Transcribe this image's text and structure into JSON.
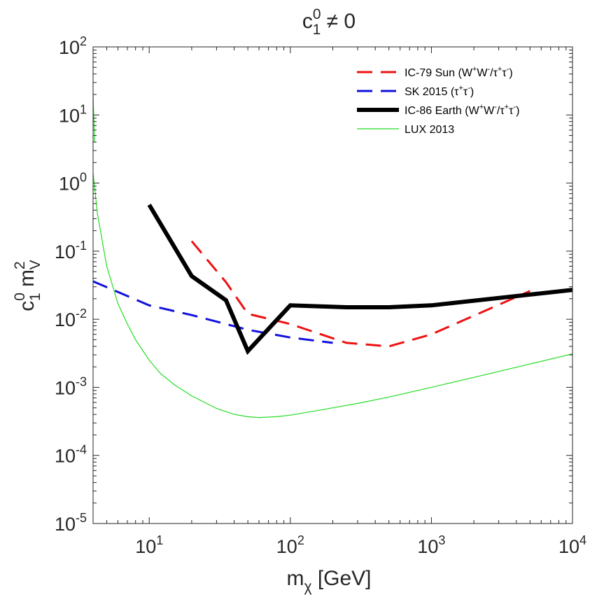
{
  "chart_data": {
    "type": "line",
    "title": "c₁⁰ ≠ 0",
    "title_parts": {
      "base": "c",
      "sup": "0",
      "sub": "1",
      "rest": " ≠ 0"
    },
    "xlabel": "m_χ [GeV]",
    "xlabel_parts": {
      "base": "m",
      "sub": "χ",
      "rest": " [GeV]"
    },
    "ylabel": "c₁⁰ m_V²",
    "ylabel_parts": {
      "c": "c",
      "c_sup": "0",
      "c_sub": "1",
      "m": " m",
      "m_sup": "2",
      "m_sub": "V"
    },
    "xscale": "log",
    "yscale": "log",
    "xlim": [
      4,
      10000
    ],
    "ylim": [
      1e-05,
      100
    ],
    "x_ticks": [
      {
        "value": 10,
        "base": "10",
        "exp": "1"
      },
      {
        "value": 100,
        "base": "10",
        "exp": "2"
      },
      {
        "value": 1000,
        "base": "10",
        "exp": "3"
      },
      {
        "value": 10000,
        "base": "10",
        "exp": "4"
      }
    ],
    "y_ticks": [
      {
        "value": 1e-05,
        "base": "10",
        "exp": "-5"
      },
      {
        "value": 0.0001,
        "base": "10",
        "exp": "-4"
      },
      {
        "value": 0.001,
        "base": "10",
        "exp": "-3"
      },
      {
        "value": 0.01,
        "base": "10",
        "exp": "-2"
      },
      {
        "value": 0.1,
        "base": "10",
        "exp": "-1"
      },
      {
        "value": 1,
        "base": "10",
        "exp": "0"
      },
      {
        "value": 10,
        "base": "10",
        "exp": "1"
      },
      {
        "value": 100,
        "base": "10",
        "exp": "2"
      }
    ],
    "grid": false,
    "legend_position": "top-right",
    "series": [
      {
        "name": "IC-79 Sun (W+W-/τ+τ-)",
        "legend_parts": [
          [
            "IC-79 Sun (W",
            ""
          ],
          [
            "+",
            "sup"
          ],
          [
            "W",
            ""
          ],
          [
            "-",
            "sup"
          ],
          [
            "/τ",
            ""
          ],
          [
            "+",
            "sup"
          ],
          [
            "τ",
            ""
          ],
          [
            "-",
            "sup"
          ],
          [
            ")",
            ""
          ]
        ],
        "color": "#ee1111",
        "style": "dashed",
        "width": 3,
        "x": [
          20,
          35,
          50,
          100,
          250,
          500,
          1000,
          5000
        ],
        "y": [
          0.14,
          0.035,
          0.012,
          0.0085,
          0.0045,
          0.004,
          0.006,
          0.026
        ]
      },
      {
        "name": "SK 2015 (τ+τ-)",
        "legend_parts": [
          [
            "SK 2015 (τ",
            ""
          ],
          [
            "+",
            "sup"
          ],
          [
            "τ",
            ""
          ],
          [
            "-",
            "sup"
          ],
          [
            ")",
            ""
          ]
        ],
        "color": "#1111dd",
        "style": "dashed",
        "width": 3,
        "x": [
          4,
          10,
          20,
          50,
          100,
          200
        ],
        "y": [
          0.036,
          0.016,
          0.0115,
          0.007,
          0.0054,
          0.0045
        ]
      },
      {
        "name": "IC-86 Earth (W+W-/τ+τ-)",
        "legend_parts": [
          [
            "IC-86 Earth (W",
            ""
          ],
          [
            "+",
            "sup"
          ],
          [
            "W",
            ""
          ],
          [
            "-",
            "sup"
          ],
          [
            "/τ",
            ""
          ],
          [
            "+",
            "sup"
          ],
          [
            "τ",
            ""
          ],
          [
            "-",
            "sup"
          ],
          [
            ")",
            ""
          ]
        ],
        "color": "#000000",
        "style": "solid",
        "width": 6,
        "x": [
          10,
          20,
          35,
          50,
          100,
          250,
          500,
          1000,
          10000
        ],
        "y": [
          0.48,
          0.043,
          0.019,
          0.0034,
          0.016,
          0.015,
          0.015,
          0.016,
          0.027
        ]
      },
      {
        "name": "LUX 2013",
        "legend_parts": [
          [
            "LUX 2013",
            ""
          ]
        ],
        "color": "#22dd22",
        "style": "solid",
        "width": 1.2,
        "x": [
          4,
          4.3,
          5,
          6,
          7,
          8,
          10,
          12,
          15,
          20,
          30,
          40,
          50,
          60,
          80,
          100,
          150,
          200,
          300,
          500,
          1000,
          2000,
          5000,
          10000
        ],
        "y": [
          1.4,
          0.35,
          0.06,
          0.017,
          0.0085,
          0.005,
          0.0025,
          0.0016,
          0.0011,
          0.00075,
          0.00049,
          0.0004,
          0.00037,
          0.00036,
          0.00037,
          0.00039,
          0.00045,
          0.0005,
          0.00058,
          0.00072,
          0.001,
          0.0014,
          0.0022,
          0.0031
        ]
      },
      {
        "name": "LUX 2013 (low-mass branch)",
        "legend_parts": [],
        "color": "#22dd22",
        "style": "solid",
        "width": 1.2,
        "x": [
          4,
          4.02,
          4.05,
          4.08,
          4.1
        ],
        "y": [
          22,
          14,
          9,
          6,
          4
        ]
      }
    ]
  }
}
